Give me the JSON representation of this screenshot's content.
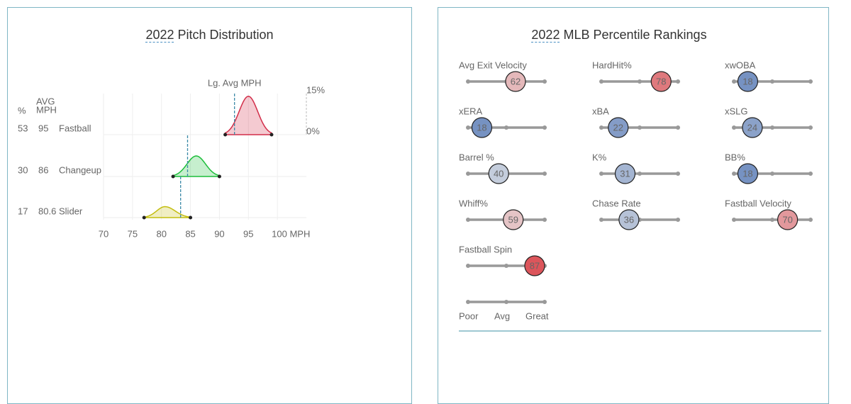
{
  "pitch_distribution": {
    "year": "2022",
    "title": "Pitch Distribution",
    "header_pct": "%",
    "header_avg": [
      "AVG",
      "MPH"
    ],
    "league_avg_label": "Lg. Avg MPH",
    "xlim": [
      70,
      105
    ],
    "xticks": [
      70,
      75,
      80,
      85,
      90,
      95,
      {
        "value": 100,
        "label": "100 MPH"
      }
    ],
    "density_ticks": [
      {
        "value": 15,
        "label": "15%"
      },
      {
        "value": 0,
        "label": "0%"
      }
    ],
    "pitches": [
      {
        "name": "Fastball",
        "pct": 53,
        "avg": 95,
        "color": "#d22d49",
        "min": 91,
        "max": 99,
        "peak": 14,
        "league_avg": 92.6
      },
      {
        "name": "Changeup",
        "pct": 30,
        "avg": 86,
        "color": "#1dbe3a",
        "min": 82,
        "max": 90,
        "peak": 7.5,
        "league_avg": 84.5
      },
      {
        "name": "Slider",
        "pct": 17,
        "avg": 80.6,
        "color": "#c3bd0e",
        "min": 77,
        "max": 85,
        "peak": 4,
        "league_avg": 83.3
      }
    ]
  },
  "percentile_rankings": {
    "year": "2022",
    "title": "MLB Percentile Rankings",
    "metrics": [
      {
        "label": "Avg Exit Velocity",
        "value": 62
      },
      {
        "label": "HardHit%",
        "value": 78
      },
      {
        "label": "xwOBA",
        "value": 18
      },
      {
        "label": "xERA",
        "value": 18
      },
      {
        "label": "xBA",
        "value": 22
      },
      {
        "label": "xSLG",
        "value": 24
      },
      {
        "label": "Barrel %",
        "value": 40
      },
      {
        "label": "K%",
        "value": 31
      },
      {
        "label": "BB%",
        "value": 18
      },
      {
        "label": "Whiff%",
        "value": 59
      },
      {
        "label": "Chase Rate",
        "value": 36
      },
      {
        "label": "Fastball Velocity",
        "value": 70
      },
      {
        "label": "Fastball Spin",
        "value": 87
      }
    ],
    "legend": {
      "poor": "Poor",
      "avg": "Avg",
      "great": "Great"
    }
  }
}
